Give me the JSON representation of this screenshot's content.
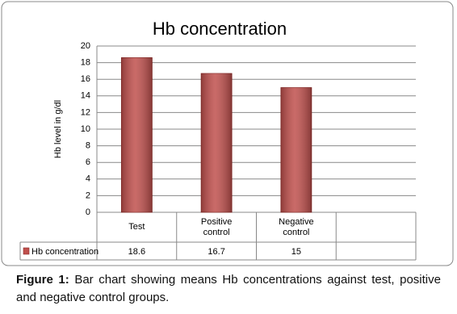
{
  "chart_data": {
    "type": "bar",
    "title": "Hb concentration",
    "y_label": "Hb level in g/dl",
    "categories": [
      "Test",
      "Positive control",
      "Negative control",
      null
    ],
    "series": [
      {
        "name": "Hb concentration",
        "color": "#c0504d",
        "values": [
          18.6,
          16.7,
          15,
          null
        ]
      }
    ],
    "ylim": [
      0,
      20
    ],
    "yticks": [
      0,
      2,
      4,
      6,
      8,
      10,
      12,
      14,
      16,
      18,
      20
    ],
    "grid": true,
    "data_table": true
  },
  "caption": {
    "label": "Figure 1:",
    "text": "Bar chart showing means Hb concentrations against test, positive and negative control groups."
  }
}
